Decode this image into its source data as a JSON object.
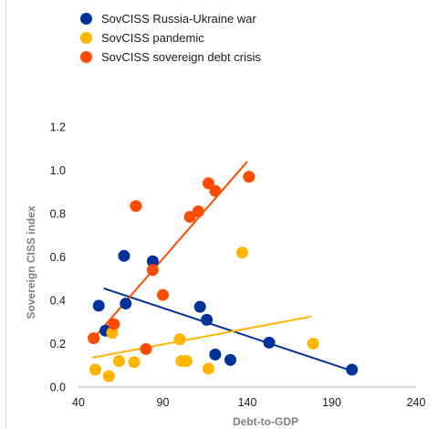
{
  "chart_data": {
    "type": "scatter",
    "xlabel": "Debt-to-GDP",
    "ylabel": "Sovereign CISS index",
    "xlim": [
      40,
      240
    ],
    "ylim": [
      0,
      1.2
    ],
    "xticks": [
      40,
      90,
      140,
      190,
      240
    ],
    "yticks": [
      0.0,
      0.2,
      0.4,
      0.6,
      0.8,
      1.0,
      1.2
    ],
    "xtick_labels": [
      "40",
      "90",
      "140",
      "190",
      "240"
    ],
    "ytick_labels": [
      "0.0",
      "0.2",
      "0.4",
      "0.6",
      "0.8",
      "1.0",
      "1.2"
    ],
    "grid": "none",
    "legend_position": "top-left",
    "series": [
      {
        "name": "SovCISS Russia-Ukraine war",
        "color": "#003299",
        "points": [
          {
            "x": 52,
            "y": 0.375
          },
          {
            "x": 56,
            "y": 0.26
          },
          {
            "x": 67,
            "y": 0.605
          },
          {
            "x": 68,
            "y": 0.385
          },
          {
            "x": 84,
            "y": 0.58
          },
          {
            "x": 112,
            "y": 0.37
          },
          {
            "x": 116,
            "y": 0.31
          },
          {
            "x": 121,
            "y": 0.15
          },
          {
            "x": 130,
            "y": 0.125
          },
          {
            "x": 153,
            "y": 0.205
          },
          {
            "x": 202,
            "y": 0.08
          }
        ],
        "trend": {
          "x": [
            55,
            200
          ],
          "y": [
            0.455,
            0.08
          ]
        }
      },
      {
        "name": "SovCISS pandemic",
        "color": "#ffb400",
        "points": [
          {
            "x": 50,
            "y": 0.08
          },
          {
            "x": 58,
            "y": 0.05
          },
          {
            "x": 60,
            "y": 0.25
          },
          {
            "x": 64,
            "y": 0.12
          },
          {
            "x": 73,
            "y": 0.115
          },
          {
            "x": 100,
            "y": 0.22
          },
          {
            "x": 101,
            "y": 0.12
          },
          {
            "x": 104,
            "y": 0.12
          },
          {
            "x": 117,
            "y": 0.085
          },
          {
            "x": 137,
            "y": 0.62
          },
          {
            "x": 179,
            "y": 0.2
          }
        ],
        "trend": {
          "x": [
            48,
            178
          ],
          "y": [
            0.135,
            0.325
          ]
        }
      },
      {
        "name": "SovCISS sovereign debt crisis",
        "color": "#ff4b00",
        "points": [
          {
            "x": 49,
            "y": 0.225
          },
          {
            "x": 61,
            "y": 0.29
          },
          {
            "x": 74,
            "y": 0.835
          },
          {
            "x": 80,
            "y": 0.175
          },
          {
            "x": 84,
            "y": 0.54
          },
          {
            "x": 90,
            "y": 0.425
          },
          {
            "x": 106,
            "y": 0.785
          },
          {
            "x": 111,
            "y": 0.81
          },
          {
            "x": 117,
            "y": 0.94
          },
          {
            "x": 121,
            "y": 0.905
          },
          {
            "x": 141,
            "y": 0.97
          }
        ],
        "trend": {
          "x": [
            48,
            140
          ],
          "y": [
            0.215,
            1.04
          ]
        }
      }
    ]
  }
}
